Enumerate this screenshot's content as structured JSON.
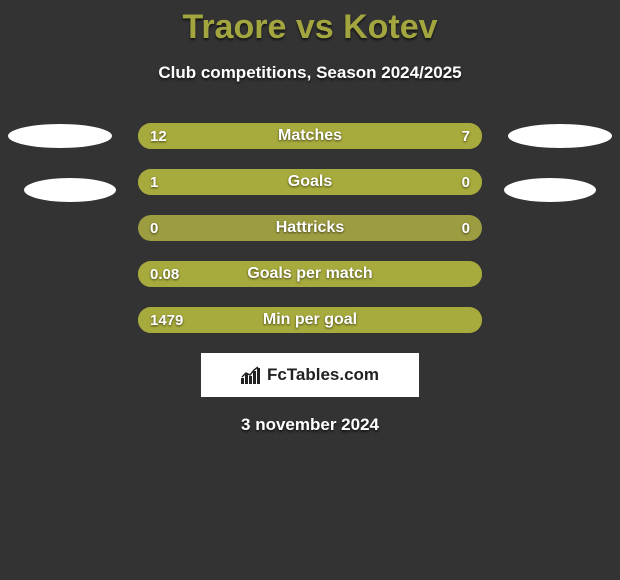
{
  "title": "Traore vs Kotev",
  "subtitle": "Club competitions, Season 2024/2025",
  "date": "3 november 2024",
  "brand": "FcTables.com",
  "colors": {
    "background": "#333333",
    "accent": "#a3a63f",
    "bar_bg": "#9c9c41",
    "bar_fill": "#a7aa3c",
    "text": "#ffffff"
  },
  "rows": [
    {
      "label": "Matches",
      "left": "12",
      "right": "7",
      "left_pct": 60,
      "right_pct": 40,
      "left_color": "#a7aa3c",
      "right_color": "#a7aa3c",
      "bg": "#9c9c41"
    },
    {
      "label": "Goals",
      "left": "1",
      "right": "0",
      "left_pct": 77,
      "right_pct": 23,
      "left_color": "#a7aa3c",
      "right_color": "#a7aa3c",
      "bg": "#9c9c41"
    },
    {
      "label": "Hattricks",
      "left": "0",
      "right": "0",
      "left_pct": 0,
      "right_pct": 0,
      "left_color": "#a7aa3c",
      "right_color": "#a7aa3c",
      "bg": "#9c9c41"
    },
    {
      "label": "Goals per match",
      "left": "0.08",
      "right": "",
      "left_pct": 100,
      "right_pct": 0,
      "left_color": "#a7aa3c",
      "right_color": "#a7aa3c",
      "bg": "#9c9c41"
    },
    {
      "label": "Min per goal",
      "left": "1479",
      "right": "",
      "left_pct": 100,
      "right_pct": 0,
      "left_color": "#a7aa3c",
      "right_color": "#a7aa3c",
      "bg": "#9c9c41"
    }
  ]
}
